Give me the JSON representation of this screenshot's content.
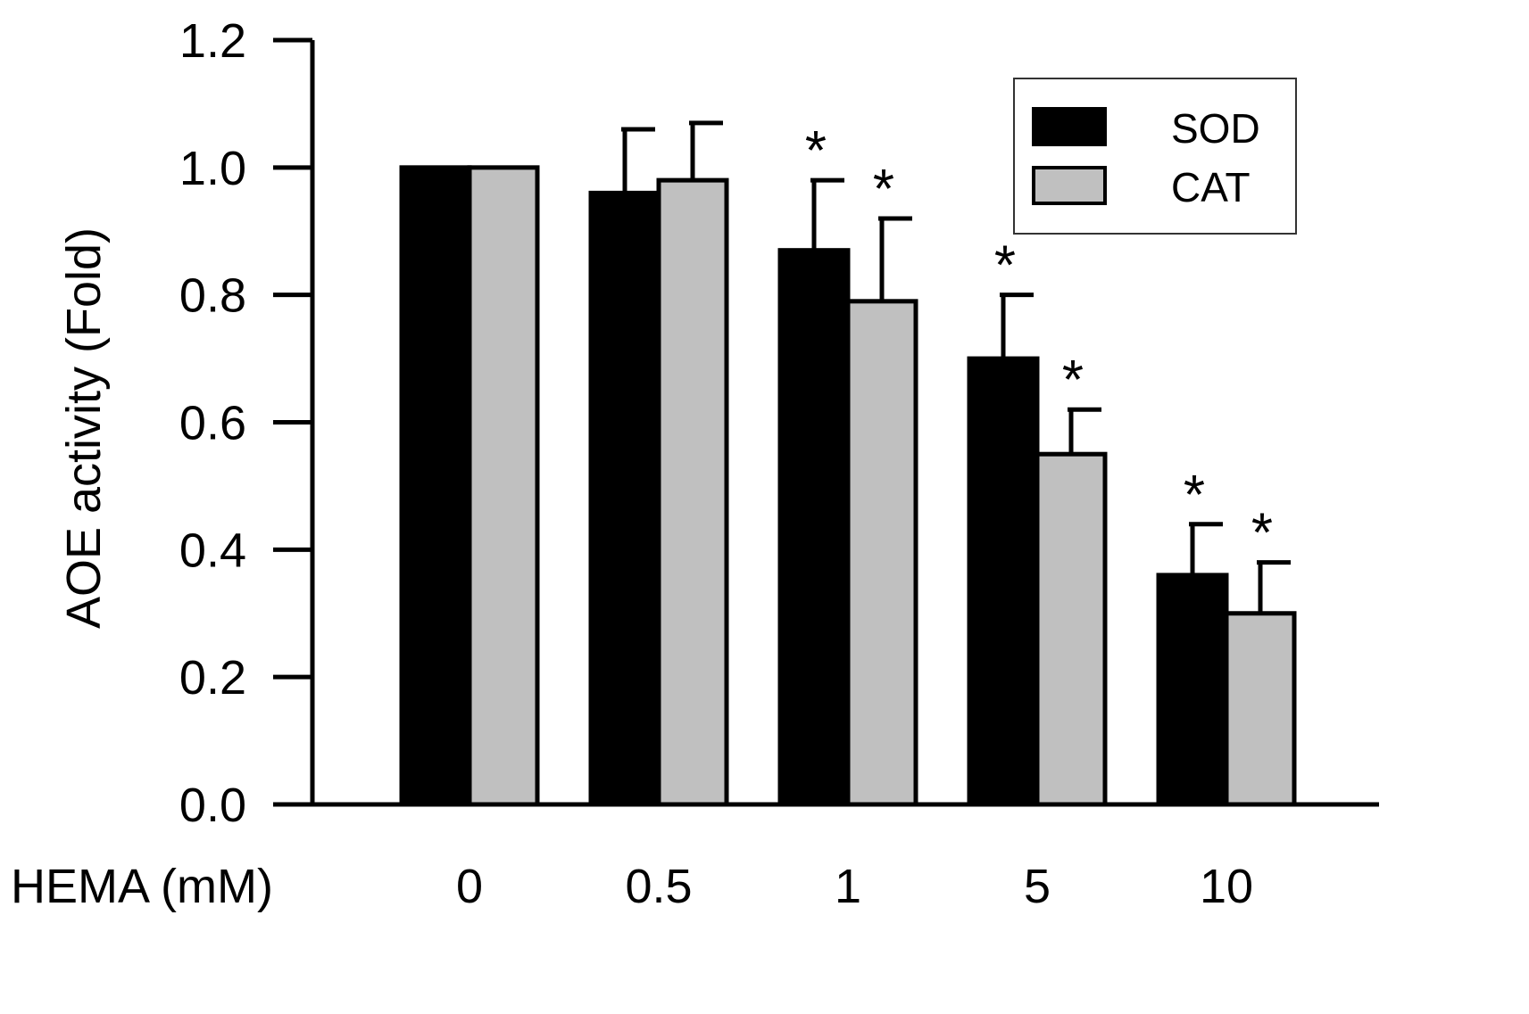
{
  "chart_data": {
    "type": "bar",
    "title": "",
    "xlabel": "HEMA (mM)",
    "ylabel": "AOE activity (Fold)",
    "categories": [
      "0",
      "0.5",
      "1",
      "5",
      "10"
    ],
    "ylim": [
      0,
      1.2
    ],
    "yticks": [
      "0.0",
      "0.2",
      "0.4",
      "0.6",
      "0.8",
      "1.0",
      "1.2"
    ],
    "grid": false,
    "legend_position": "top-right",
    "significance_marker": "*",
    "series": [
      {
        "name": "SOD",
        "color": "#000000",
        "values": [
          1.0,
          0.96,
          0.87,
          0.7,
          0.36
        ],
        "errors": [
          0.0,
          0.1,
          0.11,
          0.1,
          0.08
        ],
        "significant": [
          false,
          false,
          true,
          true,
          true
        ]
      },
      {
        "name": "CAT",
        "color": "#c0c0c0",
        "values": [
          1.0,
          0.98,
          0.79,
          0.55,
          0.3
        ],
        "errors": [
          0.0,
          0.09,
          0.13,
          0.07,
          0.08
        ],
        "significant": [
          false,
          false,
          true,
          true,
          true
        ]
      }
    ]
  }
}
